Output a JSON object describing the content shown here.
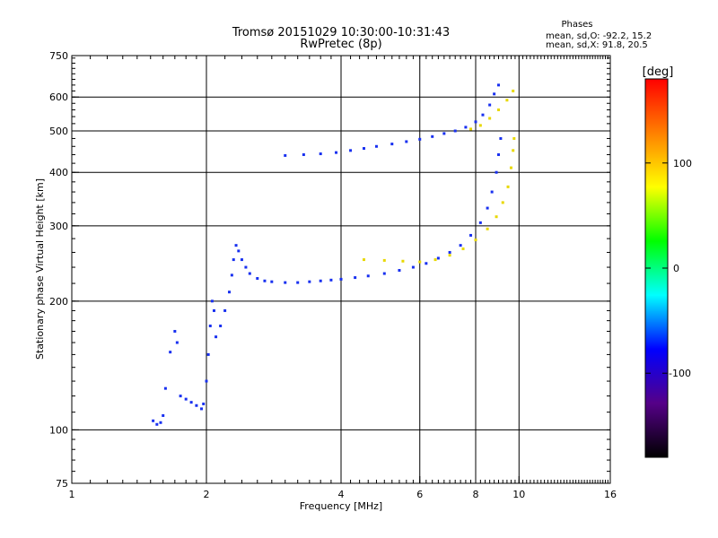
{
  "chart_data": {
    "type": "scatter",
    "title": "Tromsø 20151029 10:30:00-10:31:43",
    "subtitle": "RwPretec (8p)",
    "xlabel": "Frequency [MHz]",
    "ylabel": "Stationary phase Virtual Height [km]",
    "x_scale": "log",
    "y_scale": "log",
    "xlim": [
      1,
      16
    ],
    "ylim": [
      75,
      750
    ],
    "x_ticks": [
      1,
      2,
      4,
      6,
      8,
      10,
      16
    ],
    "y_ticks": [
      75,
      100,
      200,
      300,
      400,
      500,
      600,
      750
    ],
    "grid": true,
    "info": {
      "heading": "Phases",
      "line_o": "mean, sd,O: -92.2, 15.2",
      "line_x": "mean, sd,X:  91.8, 20.5"
    },
    "colorbar": {
      "label": "[deg]",
      "range": [
        -180,
        180
      ],
      "ticks": [
        -100,
        0,
        100
      ],
      "colors": [
        "#000000",
        "#550088",
        "#0000ff",
        "#00ffff",
        "#00ff00",
        "#ffff00",
        "#ff8000",
        "#ff0000"
      ]
    },
    "series": [
      {
        "name": "O",
        "color": "#1830f0",
        "points": [
          [
            1.52,
            105
          ],
          [
            1.55,
            103
          ],
          [
            1.58,
            104
          ],
          [
            1.6,
            108
          ],
          [
            1.62,
            125
          ],
          [
            1.66,
            152
          ],
          [
            1.7,
            170
          ],
          [
            1.72,
            160
          ],
          [
            1.75,
            120
          ],
          [
            1.8,
            118
          ],
          [
            1.85,
            116
          ],
          [
            1.9,
            114
          ],
          [
            1.95,
            112
          ],
          [
            1.97,
            115
          ],
          [
            2.0,
            130
          ],
          [
            2.02,
            150
          ],
          [
            2.04,
            175
          ],
          [
            2.06,
            200
          ],
          [
            2.08,
            190
          ],
          [
            2.1,
            165
          ],
          [
            2.15,
            175
          ],
          [
            2.2,
            190
          ],
          [
            2.25,
            210
          ],
          [
            2.28,
            230
          ],
          [
            2.3,
            250
          ],
          [
            2.33,
            270
          ],
          [
            2.36,
            262
          ],
          [
            2.4,
            250
          ],
          [
            2.45,
            240
          ],
          [
            2.5,
            232
          ],
          [
            2.6,
            226
          ],
          [
            2.7,
            223
          ],
          [
            2.8,
            222
          ],
          [
            3.0,
            221
          ],
          [
            3.2,
            221
          ],
          [
            3.4,
            222
          ],
          [
            3.6,
            223
          ],
          [
            3.8,
            224
          ],
          [
            4.0,
            225
          ],
          [
            4.3,
            227
          ],
          [
            4.6,
            229
          ],
          [
            5.0,
            232
          ],
          [
            5.4,
            236
          ],
          [
            5.8,
            240
          ],
          [
            6.2,
            245
          ],
          [
            6.6,
            252
          ],
          [
            7.0,
            260
          ],
          [
            7.4,
            270
          ],
          [
            7.8,
            285
          ],
          [
            8.2,
            305
          ],
          [
            8.5,
            330
          ],
          [
            8.7,
            360
          ],
          [
            8.9,
            400
          ],
          [
            9.0,
            440
          ],
          [
            9.1,
            480
          ],
          [
            3.0,
            438
          ],
          [
            3.3,
            440
          ],
          [
            3.6,
            442
          ],
          [
            3.9,
            445
          ],
          [
            4.2,
            450
          ],
          [
            4.5,
            455
          ],
          [
            4.8,
            460
          ],
          [
            5.2,
            466
          ],
          [
            5.6,
            472
          ],
          [
            6.0,
            478
          ],
          [
            6.4,
            485
          ],
          [
            6.8,
            493
          ],
          [
            7.2,
            500
          ],
          [
            7.6,
            510
          ],
          [
            8.0,
            525
          ],
          [
            8.3,
            545
          ],
          [
            8.6,
            575
          ],
          [
            8.8,
            610
          ],
          [
            9.0,
            640
          ]
        ]
      },
      {
        "name": "X",
        "color": "#e8d800",
        "points": [
          [
            4.5,
            250
          ],
          [
            5.0,
            249
          ],
          [
            5.5,
            248
          ],
          [
            6.0,
            247
          ],
          [
            6.5,
            250
          ],
          [
            7.0,
            256
          ],
          [
            7.5,
            265
          ],
          [
            8.0,
            278
          ],
          [
            8.5,
            295
          ],
          [
            8.9,
            315
          ],
          [
            9.2,
            340
          ],
          [
            9.45,
            370
          ],
          [
            9.6,
            410
          ],
          [
            9.7,
            450
          ],
          [
            9.75,
            480
          ],
          [
            7.8,
            505
          ],
          [
            8.2,
            515
          ],
          [
            8.6,
            535
          ],
          [
            9.0,
            560
          ],
          [
            9.4,
            590
          ],
          [
            9.7,
            620
          ]
        ]
      }
    ]
  }
}
